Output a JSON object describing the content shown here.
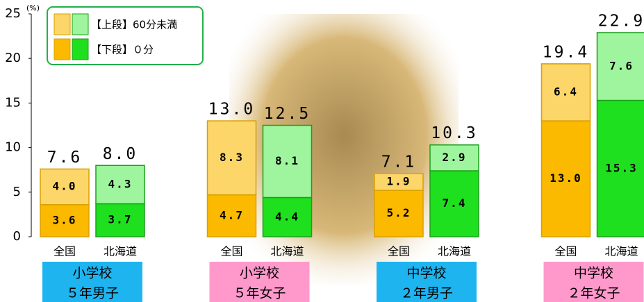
{
  "chart_data": {
    "type": "stacked_bar",
    "y_unit": "(%)",
    "categories": [
      "全国",
      "北海道",
      "全国",
      "北海道",
      "全国",
      "北海道",
      "全国",
      "北海道"
    ],
    "groups": [
      {
        "lines": [
          "小学校",
          "５年男子"
        ],
        "color": "#1eb4f0"
      },
      {
        "lines": [
          "小学校",
          "５年女子"
        ],
        "color": "#ff99cc"
      },
      {
        "lines": [
          "中学校",
          "２年男子"
        ],
        "color": "#1eb4f0"
      },
      {
        "lines": [
          "中学校",
          "２年女子"
        ],
        "color": "#ff99cc"
      }
    ],
    "series": [
      {
        "name": "【下段】０分",
        "color": [
          "#fbb900",
          "#1ee01e"
        ],
        "values": [
          3.6,
          3.7,
          4.7,
          4.4,
          5.2,
          7.4,
          13.0,
          15.3
        ],
        "value_labels": [
          "3.6",
          "3.7",
          "4.7",
          "4.4",
          "5.2",
          "7.4",
          "13.0",
          "15.3"
        ]
      },
      {
        "name": "【上段】60分未満",
        "color": [
          "#fdd66a",
          "#9ef59e"
        ],
        "values": [
          4.0,
          4.3,
          8.3,
          8.1,
          1.9,
          2.9,
          6.4,
          7.6
        ],
        "value_labels": [
          "4.0",
          "4.3",
          "8.3",
          "8.1",
          "1.9",
          "2.9",
          "6.4",
          "7.6"
        ]
      }
    ],
    "totals": {
      "values": [
        7.6,
        8.0,
        13.0,
        12.5,
        7.1,
        10.3,
        19.4,
        22.9
      ],
      "value_labels": [
        "7.6",
        "8.0",
        "13.0",
        "12.5",
        "7.1",
        "10.3",
        "19.4",
        "22.9"
      ]
    },
    "ylim": [
      0,
      25
    ],
    "yticks": [
      0,
      5,
      10,
      15,
      20,
      25
    ],
    "legend_position": "upper left"
  }
}
